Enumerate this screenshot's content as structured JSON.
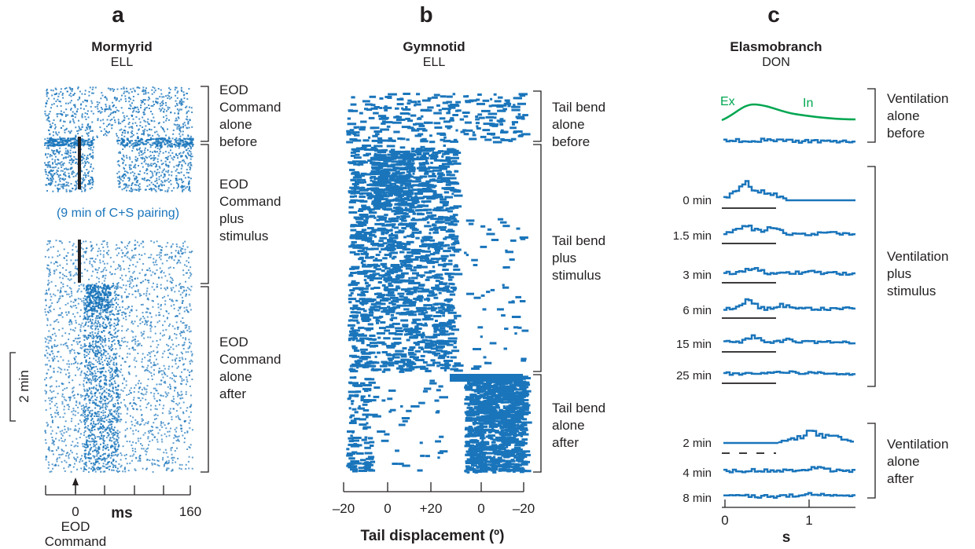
{
  "panels": {
    "a": {
      "letter": "a",
      "title": "Mormyrid",
      "subtitle": "ELL",
      "brackets": [
        "EOD\nCommand\nalone\nbefore",
        "EOD\nCommand\nplus\nstimulus",
        "EOD\nCommand\nalone\nafter"
      ],
      "pairing_note": "(9 min of C+S pairing)",
      "scale_bar_label": "2 min",
      "xaxis": {
        "ticks": [
          "0",
          "160"
        ],
        "label": "ms",
        "ref_label": "EOD\nCommand"
      }
    },
    "b": {
      "letter": "b",
      "title": "Gymnotid",
      "subtitle": "ELL",
      "brackets": [
        "Tail bend\nalone\nbefore",
        "Tail bend\nplus\nstimulus",
        "Tail bend\nalone\nafter"
      ],
      "xaxis": {
        "ticks": [
          "–20",
          "0",
          "+20",
          "0",
          "–20"
        ],
        "label": "Tail displacement (º)"
      }
    },
    "c": {
      "letter": "c",
      "title": "Elasmobranch",
      "subtitle": "DON",
      "ventilation_labels": {
        "ex": "Ex",
        "in": "In"
      },
      "brackets": [
        "Ventilation\nalone\nbefore",
        "Ventilation\nplus\nstimulus",
        "Ventilation\nalone\nafter"
      ],
      "plus_rows": [
        "0 min",
        "1.5 min",
        "3 min",
        "6 min",
        "15 min",
        "25 min"
      ],
      "after_rows": [
        "2 min",
        "4 min",
        "8 min"
      ],
      "xaxis": {
        "ticks": [
          "0",
          "1"
        ],
        "label": "s"
      }
    }
  },
  "colors": {
    "spike_blue": "#1a75bb",
    "ventilation_green": "#00a651",
    "ink": "#231f20",
    "command_bar": "#231f20"
  }
}
